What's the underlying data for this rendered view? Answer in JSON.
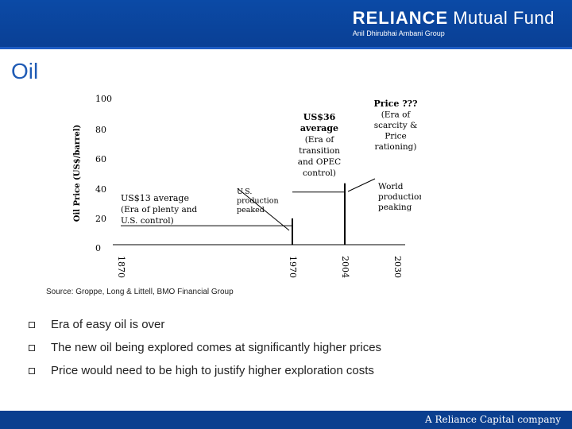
{
  "header": {
    "logo_brand": "RELIANCE",
    "logo_fund": "Mutual Fund",
    "logo_sub": "Anil Dhirubhai Ambani Group",
    "brand_color": "#0a3f94"
  },
  "slide_title": "Oil",
  "chart_data": {
    "type": "line",
    "ylabel": "Oil Price (US$/barrel)",
    "yticks": [
      "100",
      "80",
      "60",
      "40",
      "20",
      "0"
    ],
    "ylim": [
      0,
      100
    ],
    "xticks": [
      "1870",
      "1970",
      "2004",
      "2030"
    ],
    "markers": [
      {
        "x": "1970",
        "y_top": 18
      },
      {
        "x": "2004",
        "y_top": 42
      }
    ],
    "annotations": [
      {
        "heading": "US$13 average",
        "lines": [
          "(Era of plenty and",
          "U.S. control)"
        ]
      },
      {
        "heading": "",
        "lines": [
          "U.S.",
          "production",
          "peaked"
        ]
      },
      {
        "heading": "US$36",
        "heading2": "average",
        "lines": [
          "(Era of",
          "transition",
          "and OPEC",
          "control)"
        ]
      },
      {
        "heading": "Price ???",
        "lines": [
          "(Era of",
          "scarcity &",
          "Price",
          "rationing)"
        ]
      },
      {
        "heading": "",
        "lines": [
          "World",
          "production",
          "peaking"
        ]
      }
    ]
  },
  "source": "Source: Groppe, Long & Littell, BMO Financial Group",
  "bullets": [
    "Era of easy oil is over",
    "The new oil being explored comes at significantly higher prices",
    "Price would need to be high to justify higher exploration costs"
  ],
  "footer": "A Reliance Capital company"
}
